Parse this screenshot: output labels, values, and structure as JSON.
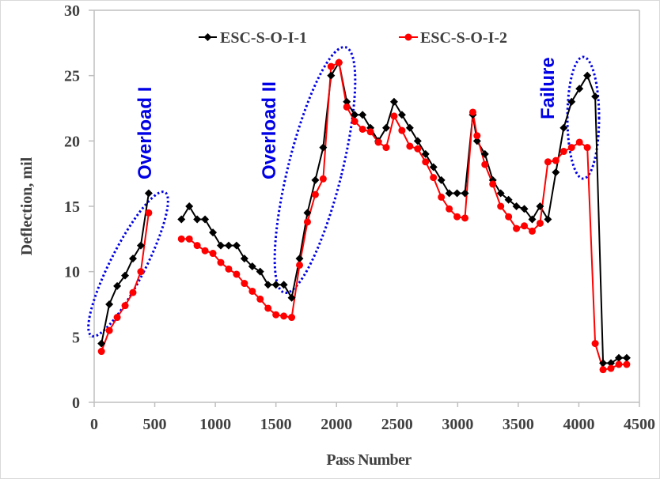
{
  "chart_data": {
    "type": "line",
    "title": "",
    "xlabel": "Pass Number",
    "ylabel": "Deflection, mil",
    "xlim": [
      0,
      4500
    ],
    "ylim": [
      0,
      30
    ],
    "xticks": [
      0,
      500,
      1000,
      1500,
      2000,
      2500,
      3000,
      3500,
      4000,
      4500
    ],
    "yticks": [
      0,
      5,
      10,
      15,
      20,
      25,
      30
    ],
    "xtick_labels": [
      "0",
      "500",
      "1000",
      "1500",
      "2000",
      "2500",
      "3000",
      "3500",
      "4000",
      "4500"
    ],
    "ytick_labels": [
      "0",
      "5",
      "10",
      "15",
      "20",
      "25",
      "30"
    ],
    "grid": false,
    "legend_position": "top",
    "series": [
      {
        "name": "ESC-S-O-I-1",
        "color": "#000000",
        "marker": "diamond",
        "segments": [
          {
            "x": [
              60,
              125,
              190,
              255,
              320,
              385,
              450
            ],
            "y": [
              4.5,
              7.5,
              8.9,
              9.7,
              11.0,
              12.0,
              16.0
            ]
          },
          {
            "x": [
              720,
              785,
              850,
              915,
              980,
              1045,
              1110,
              1175,
              1240,
              1305,
              1370,
              1435,
              1500,
              1565,
              1630,
              1695,
              1760,
              1825,
              1890,
              1955,
              2020,
              2085,
              2150,
              2215,
              2280,
              2345,
              2410,
              2475,
              2540,
              2605,
              2670,
              2735,
              2800,
              2865,
              2930,
              2995,
              3060,
              3125,
              3160,
              3225,
              3290,
              3355,
              3420,
              3485,
              3550,
              3615,
              3680,
              3745,
              3810,
              3875,
              3940,
              4005,
              4070,
              4135,
              4200,
              4265,
              4330,
              4395
            ],
            "y": [
              14.0,
              15.0,
              14.0,
              14.0,
              13.0,
              12.0,
              12.0,
              12.0,
              11.0,
              10.4,
              10.0,
              9.0,
              9.0,
              9.0,
              8.0,
              11.0,
              14.5,
              17.0,
              19.5,
              25.0,
              26.0,
              23.0,
              22.0,
              22.0,
              21.0,
              20.0,
              21.0,
              23.0,
              22.0,
              21.0,
              20.0,
              19.0,
              18.0,
              17.0,
              16.0,
              16.0,
              16.0,
              22.0,
              20.0,
              19.0,
              17.0,
              16.0,
              15.5,
              15.0,
              14.8,
              14.0,
              15.0,
              14.0,
              17.6,
              21.0,
              23.0,
              24.0,
              25.0,
              23.4,
              3.0,
              3.0,
              3.4,
              3.4
            ]
          }
        ]
      },
      {
        "name": "ESC-S-O-I-2",
        "color": "#ff0000",
        "marker": "circle",
        "segments": [
          {
            "x": [
              60,
              125,
              190,
              255,
              320,
              385,
              450
            ],
            "y": [
              3.9,
              5.5,
              6.5,
              7.4,
              8.4,
              10.0,
              14.5
            ]
          },
          {
            "x": [
              720,
              785,
              850,
              915,
              980,
              1045,
              1110,
              1175,
              1240,
              1305,
              1370,
              1435,
              1500,
              1565,
              1630,
              1695,
              1760,
              1825,
              1890,
              1955,
              2020,
              2085,
              2150,
              2215,
              2280,
              2345,
              2410,
              2475,
              2540,
              2605,
              2670,
              2735,
              2800,
              2865,
              2930,
              2995,
              3060,
              3125,
              3160,
              3225,
              3290,
              3355,
              3420,
              3485,
              3550,
              3615,
              3680,
              3745,
              3810,
              3875,
              3940,
              4005,
              4070,
              4135,
              4200,
              4265,
              4330,
              4395
            ],
            "y": [
              12.5,
              12.5,
              12.0,
              11.6,
              11.4,
              10.7,
              10.2,
              9.8,
              9.1,
              8.5,
              7.9,
              7.2,
              6.7,
              6.6,
              6.5,
              10.5,
              13.8,
              15.9,
              17.1,
              25.7,
              26.0,
              22.6,
              21.5,
              20.9,
              20.7,
              19.9,
              19.5,
              21.9,
              20.8,
              19.6,
              19.4,
              18.4,
              17.2,
              15.7,
              14.8,
              14.2,
              14.1,
              22.2,
              20.4,
              18.2,
              16.7,
              15.0,
              14.2,
              13.3,
              13.5,
              13.1,
              13.7,
              18.4,
              18.5,
              19.2,
              19.5,
              19.9,
              19.5,
              4.5,
              2.5,
              2.6,
              2.9,
              2.9
            ]
          }
        ]
      }
    ],
    "annotations": [
      {
        "text": "Overload I",
        "near_x": 450,
        "near_y": 20.5,
        "enclosed_x": [
          40,
          500
        ],
        "enclosed_y": [
          4.8,
          16.3
        ]
      },
      {
        "text": "Overload II",
        "near_x": 1560,
        "near_y": 21.5,
        "enclosed_x": [
          1600,
          2170
        ],
        "enclosed_y": [
          8.2,
          26.8
        ]
      },
      {
        "text": "Failure",
        "near_x": 3820,
        "near_y": 24.0,
        "enclosed_x": [
          4040,
          4260
        ],
        "enclosed_y": [
          17.3,
          26.7
        ]
      }
    ],
    "annotation_color": "#0000e6"
  }
}
